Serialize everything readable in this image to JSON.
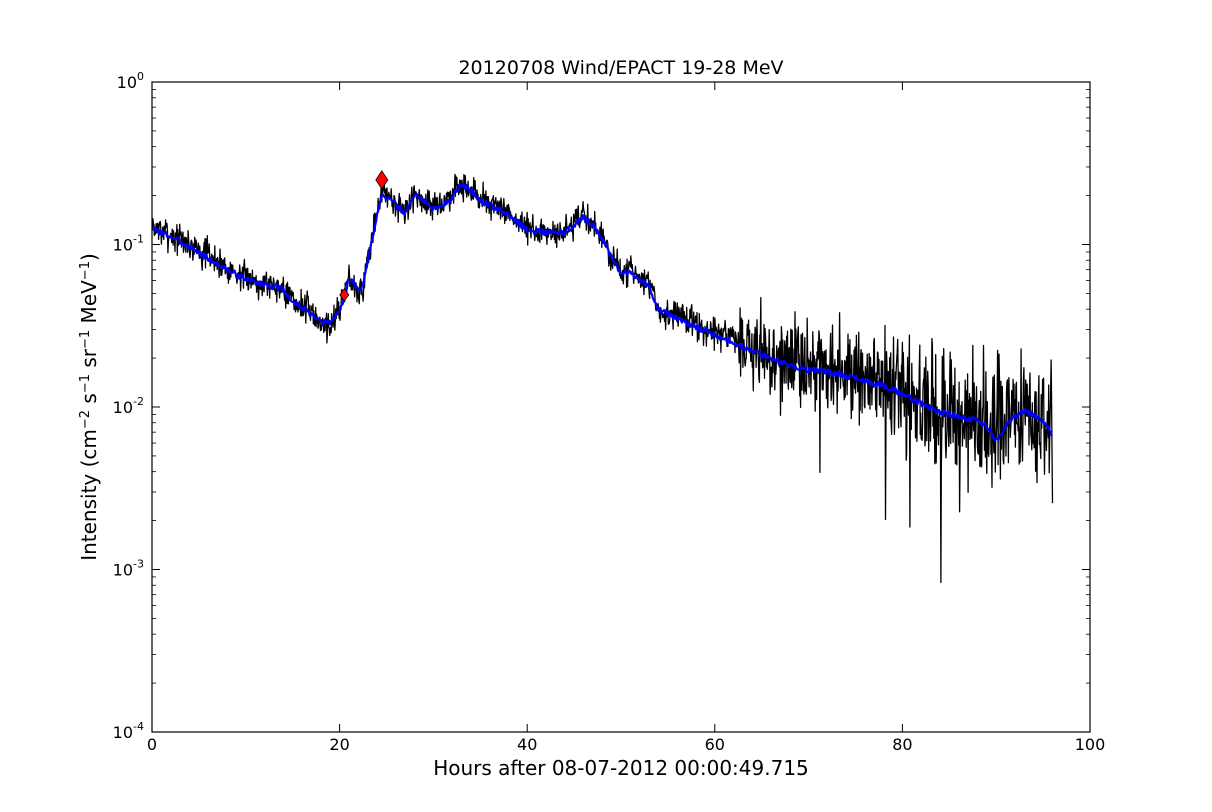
{
  "chart_data": {
    "type": "line",
    "title": "20120708 Wind/EPACT 19-28 MeV",
    "xlabel": "Hours after 08-07-2012 00:00:49.715",
    "ylabel": {
      "parts": [
        "Intensity (cm",
        "−2",
        " s",
        "−1",
        " sr",
        "−1",
        " MeV",
        "−1",
        ")"
      ]
    },
    "xlim": [
      0,
      100
    ],
    "ylim": [
      0.0001,
      1
    ],
    "yscale": "log",
    "grid": false,
    "x_ticks": [
      0,
      20,
      40,
      60,
      80,
      100
    ],
    "x_tick_labels": [
      "0",
      "20",
      "40",
      "60",
      "80",
      "100"
    ],
    "y_ticks": [
      0.0001,
      0.001,
      0.01,
      0.1,
      1
    ],
    "y_tick_labels": [
      {
        "base": "10",
        "exp": "-4"
      },
      {
        "base": "10",
        "exp": "-3"
      },
      {
        "base": "10",
        "exp": "-2"
      },
      {
        "base": "10",
        "exp": "-1"
      },
      {
        "base": "10",
        "exp": "0"
      }
    ],
    "series": [
      {
        "role": "raw",
        "color": "#000000",
        "x": [
          0,
          2,
          4,
          6,
          8,
          10,
          12,
          14,
          15,
          16,
          17,
          18,
          19,
          20,
          20.5,
          21,
          21.5,
          22,
          22.5,
          23,
          23.5,
          24,
          24.5,
          25,
          26,
          27,
          28,
          29,
          30,
          31,
          32,
          33,
          34,
          35,
          36,
          38,
          40,
          42,
          44,
          46,
          47,
          48,
          49,
          50,
          51,
          52,
          53,
          54,
          56,
          58,
          60,
          62,
          64,
          66,
          68,
          70,
          72,
          74,
          76,
          78,
          80,
          82,
          84,
          86,
          88,
          89,
          90,
          91,
          92,
          93,
          94,
          95,
          95.5,
          96
        ],
        "y": [
          0.13,
          0.115,
          0.1,
          0.085,
          0.072,
          0.062,
          0.058,
          0.055,
          0.045,
          0.042,
          0.038,
          0.033,
          0.032,
          0.04,
          0.05,
          0.065,
          0.06,
          0.05,
          0.055,
          0.08,
          0.11,
          0.16,
          0.22,
          0.2,
          0.18,
          0.15,
          0.21,
          0.19,
          0.17,
          0.18,
          0.2,
          0.24,
          0.22,
          0.19,
          0.18,
          0.155,
          0.125,
          0.12,
          0.12,
          0.15,
          0.135,
          0.11,
          0.085,
          0.065,
          0.07,
          0.062,
          0.056,
          0.04,
          0.036,
          0.032,
          0.029,
          0.026,
          0.023,
          0.021,
          0.019,
          0.018,
          0.017,
          0.016,
          0.015,
          0.014,
          0.012,
          0.011,
          0.0095,
          0.009,
          0.0085,
          0.008,
          0.0075,
          0.008,
          0.009,
          0.0095,
          0.009,
          0.0085,
          0.008,
          0.0075
        ],
        "noise": {
          "seed": 7,
          "points_per_hour": 20
        }
      },
      {
        "role": "smoothed",
        "color": "#0000ff",
        "x": [
          0,
          2,
          4,
          6,
          8,
          10,
          12,
          14,
          15,
          16,
          17,
          18,
          19,
          20,
          20.5,
          21,
          21.5,
          22,
          22.5,
          23,
          23.5,
          24,
          24.5,
          25,
          26,
          27,
          28,
          29,
          30,
          31,
          32,
          33,
          34,
          35,
          36,
          38,
          40,
          42,
          44,
          46,
          47,
          48,
          49,
          50,
          51,
          52,
          53,
          54,
          56,
          58,
          60,
          62,
          64,
          66,
          68,
          70,
          72,
          74,
          76,
          78,
          80,
          82,
          84,
          86,
          88,
          89,
          90,
          91,
          92,
          93,
          94,
          95,
          95.5,
          96
        ],
        "y": [
          0.125,
          0.112,
          0.097,
          0.082,
          0.07,
          0.061,
          0.057,
          0.053,
          0.044,
          0.041,
          0.037,
          0.033,
          0.033,
          0.039,
          0.047,
          0.062,
          0.058,
          0.052,
          0.056,
          0.078,
          0.11,
          0.155,
          0.205,
          0.195,
          0.175,
          0.155,
          0.205,
          0.185,
          0.165,
          0.175,
          0.195,
          0.235,
          0.215,
          0.185,
          0.175,
          0.152,
          0.123,
          0.119,
          0.118,
          0.148,
          0.133,
          0.108,
          0.082,
          0.066,
          0.068,
          0.061,
          0.055,
          0.04,
          0.035,
          0.031,
          0.028,
          0.025,
          0.022,
          0.02,
          0.018,
          0.017,
          0.0165,
          0.0155,
          0.0145,
          0.0135,
          0.012,
          0.0105,
          0.0093,
          0.0088,
          0.0082,
          0.0076,
          0.0062,
          0.0075,
          0.0088,
          0.0095,
          0.009,
          0.0082,
          0.0074,
          0.0068
        ],
        "noise": {
          "seed": 3,
          "points_per_hour": 10
        }
      }
    ],
    "markers": [
      {
        "shape": "diamond",
        "size": "small",
        "color": "#ff0000",
        "x": 20.5,
        "y": 0.049
      },
      {
        "shape": "diamond",
        "size": "large",
        "color": "#ff0000",
        "x": 24.5,
        "y": 0.25
      }
    ]
  }
}
